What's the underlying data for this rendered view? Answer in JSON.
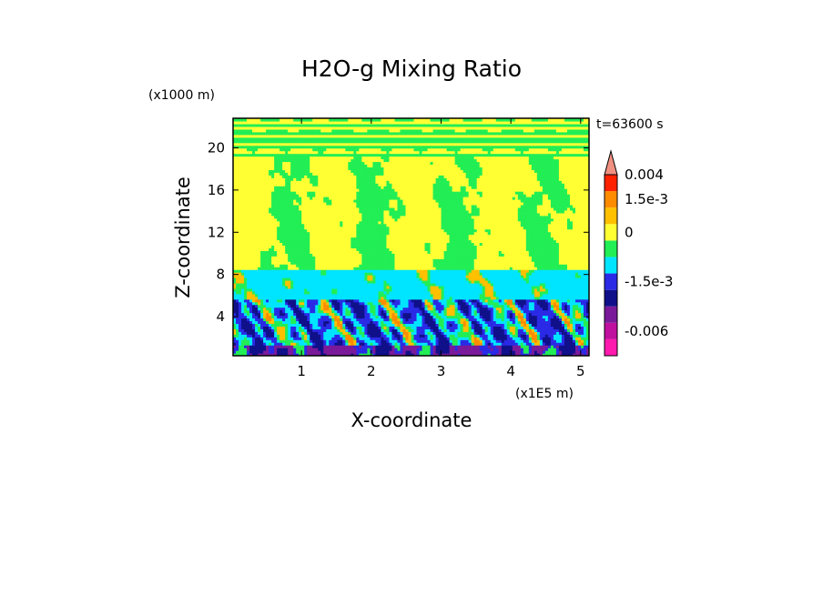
{
  "chart_data": {
    "type": "heatmap",
    "title": "H2O-g Mixing Ratio",
    "xlabel": "X-coordinate",
    "ylabel": "Z-coordinate",
    "x_unit": "(x1E5 m)",
    "y_unit": "(x1000 m)",
    "time_label": "t=63600 s",
    "xlim": [
      0.02,
      5.12
    ],
    "ylim": [
      0.3,
      22.8
    ],
    "x_ticks": [
      1,
      2,
      3,
      4,
      5
    ],
    "y_ticks": [
      4,
      8,
      12,
      16,
      20
    ],
    "colorbar": {
      "levels": [
        "magenta",
        "purple",
        "violet",
        "navy",
        "blue",
        "cyan",
        "green",
        "yellow",
        "orange",
        "darkorange",
        "red",
        "salmon"
      ],
      "colors": [
        "#ff1aae",
        "#c0109f",
        "#7a1a9a",
        "#10108a",
        "#2a2ae6",
        "#00e5ff",
        "#22ee55",
        "#ffff33",
        "#ffc000",
        "#ff8c00",
        "#ff2200",
        "#f09080"
      ],
      "tick_labels": [
        "0.004",
        "1.5e-3",
        "0",
        "-1.5e-3",
        "-0.006"
      ],
      "tick_level_index": [
        11,
        9,
        7,
        4,
        1
      ]
    },
    "bands": [
      {
        "zmin": 0.3,
        "zmax": 1.2,
        "dominant": "purple"
      },
      {
        "zmin": 1.2,
        "zmax": 5.5,
        "dominant": "blue"
      },
      {
        "zmin": 5.5,
        "zmax": 8.5,
        "dominant": "cyan"
      },
      {
        "zmin": 8.5,
        "zmax": 19.0,
        "dominant": "yellow/green"
      },
      {
        "zmin": 19.0,
        "zmax": 22.8,
        "dominant": "green/yellow stripes"
      }
    ]
  }
}
